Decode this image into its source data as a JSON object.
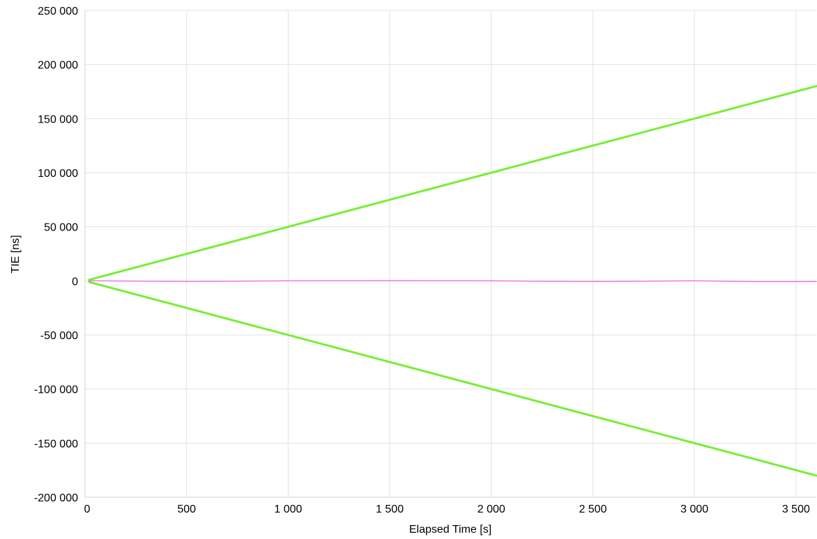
{
  "chart_data": {
    "type": "line",
    "title": "",
    "xlabel": "Elapsed Time [s]",
    "ylabel": "TIE [ns]",
    "xlim": [
      0,
      3600
    ],
    "ylim": [
      -200000,
      250000
    ],
    "x_ticks": [
      0,
      500,
      1000,
      1500,
      2000,
      2500,
      3000,
      3500
    ],
    "x_tick_labels": [
      "0",
      "500",
      "1 000",
      "1 500",
      "2 000",
      "2 500",
      "3 000",
      "3 500"
    ],
    "y_ticks": [
      250000,
      200000,
      150000,
      100000,
      50000,
      0,
      -50000,
      -100000,
      -150000,
      -200000
    ],
    "y_tick_labels": [
      "250 000",
      "200 000",
      "150 000",
      "100 000",
      "50 000",
      "0",
      "-50 000",
      "-100 000",
      "-150 000",
      "-200 000"
    ],
    "grid": true,
    "legend": "none",
    "series": [
      {
        "color": "#77ee33",
        "x": [
          20,
          3600
        ],
        "values": [
          1000,
          180000
        ]
      },
      {
        "color": "#77ee33",
        "x": [
          20,
          3600
        ],
        "values": [
          -1000,
          -180000
        ]
      },
      {
        "color": "#ee77ee",
        "x": [
          20,
          500,
          1000,
          1500,
          2000,
          2500,
          3000,
          3300,
          3600
        ],
        "values": [
          0,
          -500,
          0,
          200,
          0,
          -600,
          0,
          -700,
          -600
        ]
      }
    ]
  }
}
